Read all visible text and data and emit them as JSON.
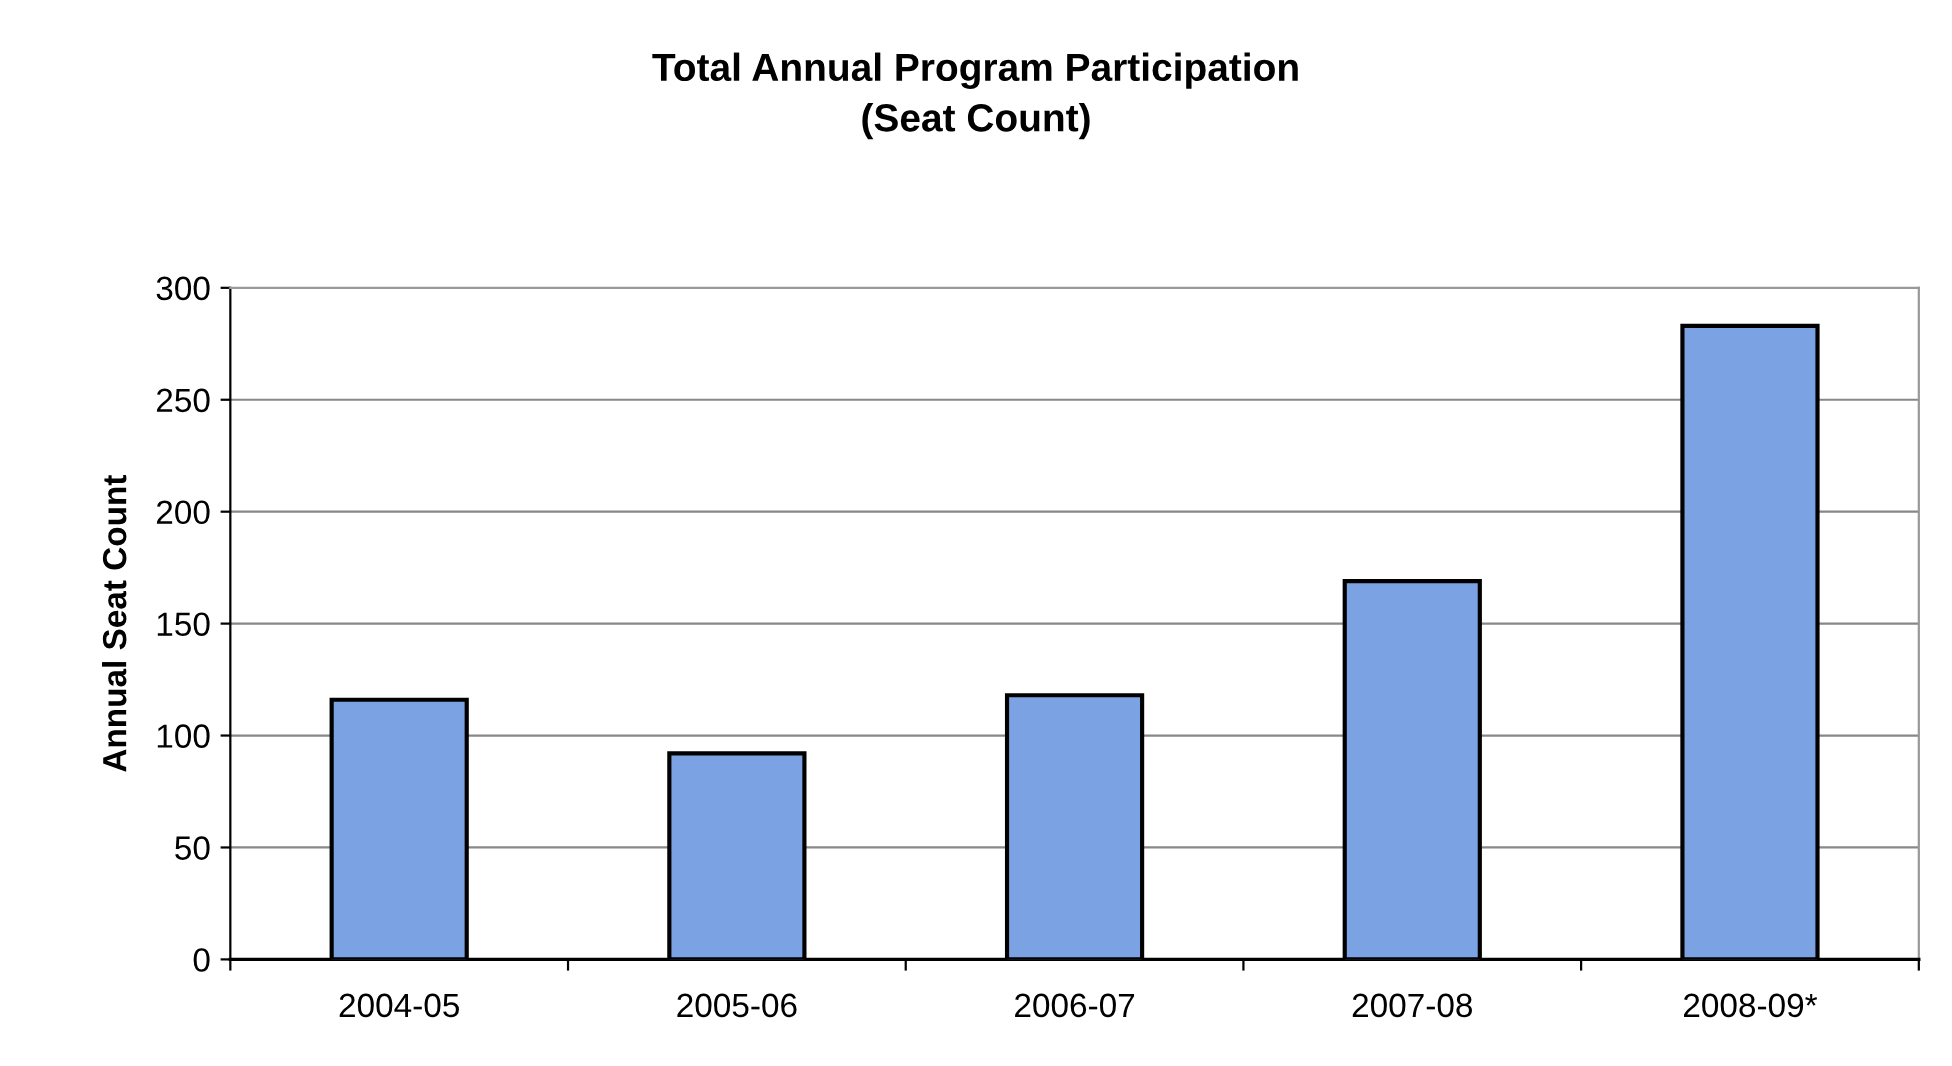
{
  "chart_data": {
    "type": "bar",
    "title": "Total Annual Program Participation\n(Seat Count)",
    "ylabel": "Annual Seat Count",
    "categories": [
      "2004-05",
      "2005-06",
      "2006-07",
      "2007-08",
      "2008-09*"
    ],
    "values": [
      116,
      92,
      118,
      169,
      283
    ],
    "color": "#7ba3e3",
    "ylim": [
      0,
      300
    ],
    "yticks": [
      0,
      50,
      100,
      150,
      200,
      250,
      300
    ],
    "grid": "y",
    "legend": false
  }
}
